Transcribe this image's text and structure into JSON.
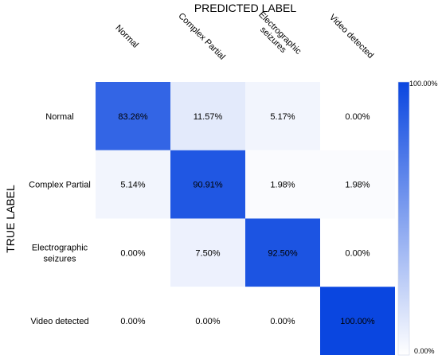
{
  "chart_data": {
    "type": "heatmap",
    "title": "",
    "xlabel": "PREDICTED LABEL",
    "ylabel": "TRUE LABEL",
    "columns": [
      "Normal",
      "Complex Partial",
      "Electrographic seizures",
      "Video detected"
    ],
    "rows": [
      "Normal",
      "Complex Partial",
      "Electrographic seizures",
      "Video detected"
    ],
    "values": [
      [
        83.26,
        11.57,
        5.17,
        0.0
      ],
      [
        5.14,
        90.91,
        1.98,
        1.98
      ],
      [
        0.0,
        7.5,
        92.5,
        0.0
      ],
      [
        0.0,
        0.0,
        0.0,
        100.0
      ]
    ],
    "cell_labels": [
      [
        "83.26%",
        "11.57%",
        "5.17%",
        "0.00%"
      ],
      [
        "5.14%",
        "90.91%",
        "1.98%",
        "1.98%"
      ],
      [
        "0.00%",
        "7.50%",
        "92.50%",
        "0.00%"
      ],
      [
        "0.00%",
        "0.00%",
        "0.00%",
        "100.00%"
      ]
    ],
    "colorbar": {
      "min_label": "0.00%",
      "max_label": "100.00%",
      "range": [
        0,
        100
      ]
    },
    "colors": {
      "low": "#ffffff",
      "high": "#0a46e0"
    }
  }
}
